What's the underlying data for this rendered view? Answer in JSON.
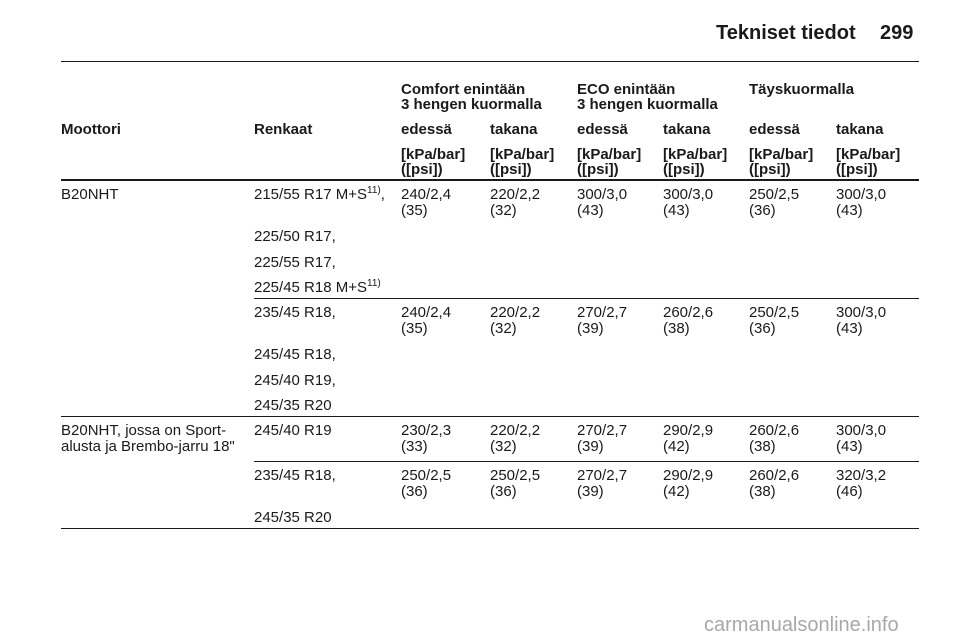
{
  "header": {
    "title": "Tekniset tiedot",
    "page_number": "299"
  },
  "table": {
    "group_headers": {
      "comfort_line1": "Comfort enintään",
      "comfort_line2": "3 hengen kuormalla",
      "eco_line1": "ECO enintään",
      "eco_line2": "3 hengen kuormalla",
      "full": "Täyskuormalla"
    },
    "column_headers": {
      "engine": "Moottori",
      "tyres": "Renkaat",
      "comfort_front": "edessä",
      "comfort_rear": "takana",
      "eco_front": "edessä",
      "eco_rear": "takana",
      "full_front": "edessä",
      "full_rear": "takana"
    },
    "unit_line1": "[kPa/bar]",
    "unit_line2": "([psi])",
    "rows": [
      {
        "engine": "B20NHT",
        "tyres": [
          "215/55 R17 M+S",
          "225/50 R17,",
          "225/55 R17,",
          "225/45 R18 M+S"
        ],
        "tyre_note": "11)",
        "tyre_first_suffix": ",",
        "values_kpa": [
          "240/2,4",
          "220/2,2",
          "300/3,0",
          "300/3,0",
          "250/2,5",
          "300/3,0"
        ],
        "values_psi": [
          "(35)",
          "(32)",
          "(43)",
          "(43)",
          "(36)",
          "(43)"
        ]
      },
      {
        "engine": "",
        "tyres": [
          "235/45 R18,",
          "245/45 R18,",
          "245/40 R19,",
          "245/35 R20"
        ],
        "values_kpa": [
          "240/2,4",
          "220/2,2",
          "270/2,7",
          "260/2,6",
          "250/2,5",
          "300/3,0"
        ],
        "values_psi": [
          "(35)",
          "(32)",
          "(39)",
          "(38)",
          "(36)",
          "(43)"
        ]
      },
      {
        "engine_line1": "B20NHT, jossa on Sport-",
        "engine_line2": "alusta ja Brembo-jarru 18\"",
        "tyres": [
          "245/40 R19"
        ],
        "values_kpa": [
          "230/2,3",
          "220/2,2",
          "270/2,7",
          "290/2,9",
          "260/2,6",
          "300/3,0"
        ],
        "values_psi": [
          "(33)",
          "(32)",
          "(39)",
          "(42)",
          "(38)",
          "(43)"
        ]
      },
      {
        "engine": "",
        "tyres": [
          "235/45 R18,",
          "245/35 R20"
        ],
        "values_kpa": [
          "250/2,5",
          "250/2,5",
          "270/2,7",
          "290/2,9",
          "260/2,6",
          "320/3,2"
        ],
        "values_psi": [
          "(36)",
          "(36)",
          "(39)",
          "(42)",
          "(38)",
          "(46)"
        ]
      }
    ]
  },
  "watermark": "carmanualsonline.info"
}
